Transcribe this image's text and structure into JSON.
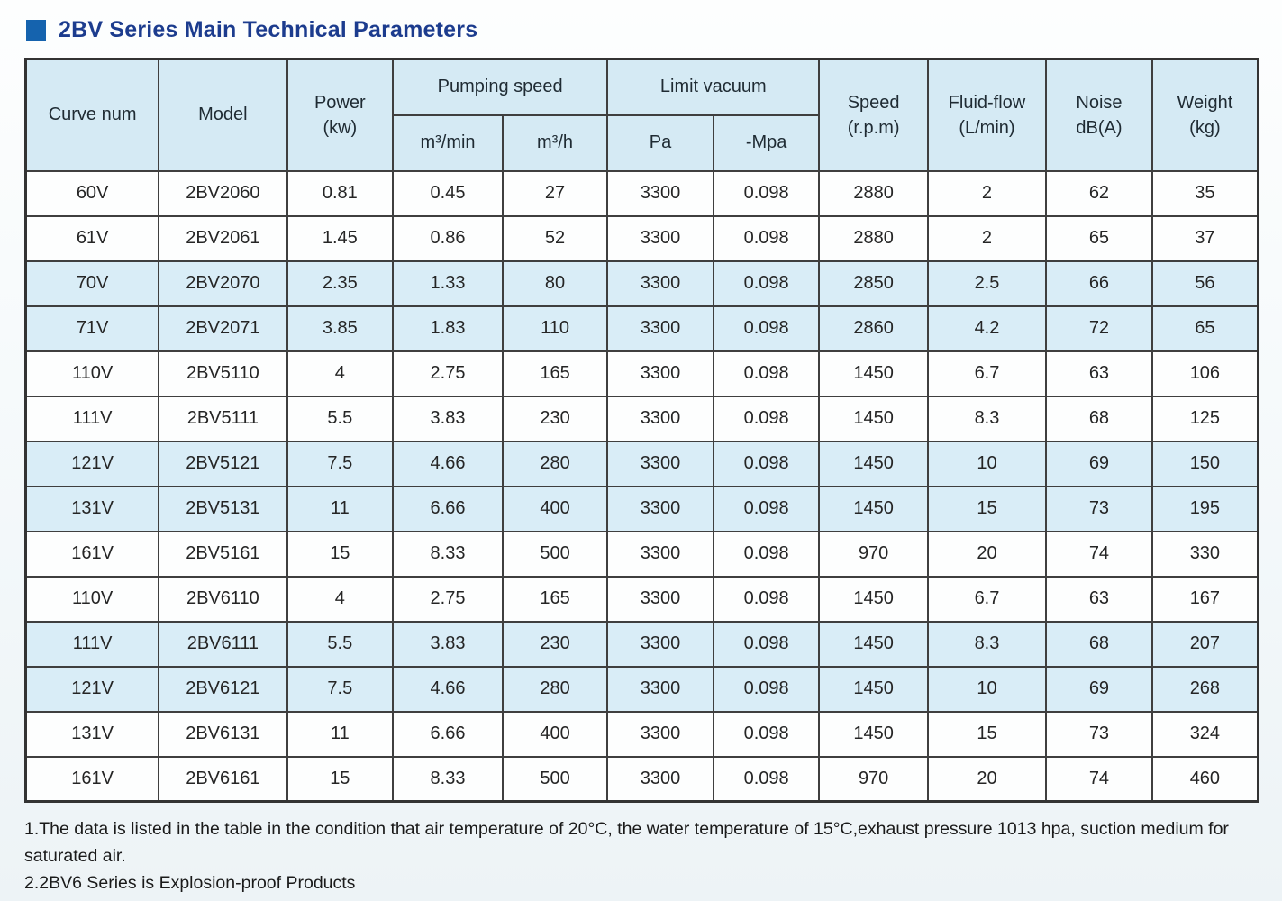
{
  "page": {
    "title": "2BV Series Main Technical Parameters"
  },
  "colors": {
    "accent_square": "#1563ae",
    "title_text": "#1c3c8e",
    "header_bg": "#d5eaf4",
    "shaded_row_bg": "#d9edf7",
    "grid_border": "#3f3f3f"
  },
  "table": {
    "header": {
      "curve_num": "Curve num",
      "model": "Model",
      "power_line1": "Power",
      "power_line2": "(kw)",
      "pumping_speed": "Pumping speed",
      "m3min": "m³/min",
      "m3h": "m³/h",
      "limit_vacuum": "Limit vacuum",
      "pa": "Pa",
      "mpa": "-Mpa",
      "speed_line1": "Speed",
      "speed_line2": "(r.p.m)",
      "fluid_line1": "Fluid-flow",
      "fluid_line2": "(L/min)",
      "noise_line1": "Noise",
      "noise_line2": "dB(A)",
      "weight_line1": "Weight",
      "weight_line2": "(kg)"
    },
    "row_keys": [
      "curve",
      "model",
      "power",
      "m3min",
      "m3h",
      "pa",
      "mpa",
      "speed",
      "fluid",
      "noise",
      "weight"
    ],
    "rows": [
      {
        "curve": "60V",
        "model": "2BV2060",
        "power": "0.81",
        "m3min": "0.45",
        "m3h": "27",
        "pa": "3300",
        "mpa": "0.098",
        "speed": "2880",
        "fluid": "2",
        "noise": "62",
        "weight": "35",
        "shaded": false
      },
      {
        "curve": "61V",
        "model": "2BV2061",
        "power": "1.45",
        "m3min": "0.86",
        "m3h": "52",
        "pa": "3300",
        "mpa": "0.098",
        "speed": "2880",
        "fluid": "2",
        "noise": "65",
        "weight": "37",
        "shaded": false
      },
      {
        "curve": "70V",
        "model": "2BV2070",
        "power": "2.35",
        "m3min": "1.33",
        "m3h": "80",
        "pa": "3300",
        "mpa": "0.098",
        "speed": "2850",
        "fluid": "2.5",
        "noise": "66",
        "weight": "56",
        "shaded": true
      },
      {
        "curve": "71V",
        "model": "2BV2071",
        "power": "3.85",
        "m3min": "1.83",
        "m3h": "110",
        "pa": "3300",
        "mpa": "0.098",
        "speed": "2860",
        "fluid": "4.2",
        "noise": "72",
        "weight": "65",
        "shaded": true
      },
      {
        "curve": "110V",
        "model": "2BV5110",
        "power": "4",
        "m3min": "2.75",
        "m3h": "165",
        "pa": "3300",
        "mpa": "0.098",
        "speed": "1450",
        "fluid": "6.7",
        "noise": "63",
        "weight": "106",
        "shaded": false
      },
      {
        "curve": "111V",
        "model": "2BV5111",
        "power": "5.5",
        "m3min": "3.83",
        "m3h": "230",
        "pa": "3300",
        "mpa": "0.098",
        "speed": "1450",
        "fluid": "8.3",
        "noise": "68",
        "weight": "125",
        "shaded": false
      },
      {
        "curve": "121V",
        "model": "2BV5121",
        "power": "7.5",
        "m3min": "4.66",
        "m3h": "280",
        "pa": "3300",
        "mpa": "0.098",
        "speed": "1450",
        "fluid": "10",
        "noise": "69",
        "weight": "150",
        "shaded": true
      },
      {
        "curve": "131V",
        "model": "2BV5131",
        "power": "11",
        "m3min": "6.66",
        "m3h": "400",
        "pa": "3300",
        "mpa": "0.098",
        "speed": "1450",
        "fluid": "15",
        "noise": "73",
        "weight": "195",
        "shaded": true
      },
      {
        "curve": "161V",
        "model": "2BV5161",
        "power": "15",
        "m3min": "8.33",
        "m3h": "500",
        "pa": "3300",
        "mpa": "0.098",
        "speed": "970",
        "fluid": "20",
        "noise": "74",
        "weight": "330",
        "shaded": false
      },
      {
        "curve": "110V",
        "model": "2BV6110",
        "power": "4",
        "m3min": "2.75",
        "m3h": "165",
        "pa": "3300",
        "mpa": "0.098",
        "speed": "1450",
        "fluid": "6.7",
        "noise": "63",
        "weight": "167",
        "shaded": false
      },
      {
        "curve": "111V",
        "model": "2BV6111",
        "power": "5.5",
        "m3min": "3.83",
        "m3h": "230",
        "pa": "3300",
        "mpa": "0.098",
        "speed": "1450",
        "fluid": "8.3",
        "noise": "68",
        "weight": "207",
        "shaded": true
      },
      {
        "curve": "121V",
        "model": "2BV6121",
        "power": "7.5",
        "m3min": "4.66",
        "m3h": "280",
        "pa": "3300",
        "mpa": "0.098",
        "speed": "1450",
        "fluid": "10",
        "noise": "69",
        "weight": "268",
        "shaded": true
      },
      {
        "curve": "131V",
        "model": "2BV6131",
        "power": "11",
        "m3min": "6.66",
        "m3h": "400",
        "pa": "3300",
        "mpa": "0.098",
        "speed": "1450",
        "fluid": "15",
        "noise": "73",
        "weight": "324",
        "shaded": false
      },
      {
        "curve": "161V",
        "model": "2BV6161",
        "power": "15",
        "m3min": "8.33",
        "m3h": "500",
        "pa": "3300",
        "mpa": "0.098",
        "speed": "970",
        "fluid": "20",
        "noise": "74",
        "weight": "460",
        "shaded": false
      }
    ]
  },
  "notes": [
    "1.The data is listed in the table in the condition that air temperature of 20°C, the water temperature of 15°C,exhaust pressure 1013 hpa, suction medium for saturated air.",
    "2.2BV6 Series is Explosion-proof Products"
  ]
}
